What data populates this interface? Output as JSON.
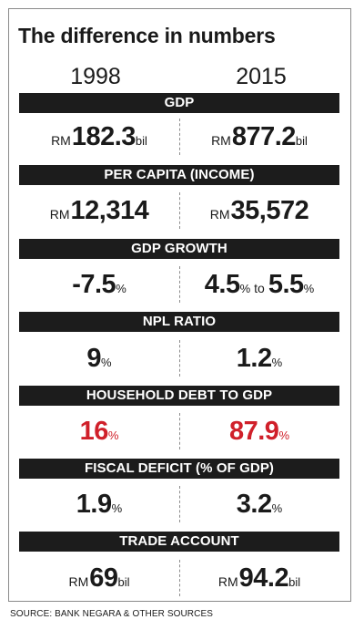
{
  "title": "The difference in numbers",
  "years": {
    "left": "1998",
    "right": "2015"
  },
  "rows": [
    {
      "label": "GDP",
      "left": {
        "prefix": "RM",
        "value": "182.3",
        "suffix": "bil"
      },
      "right": {
        "prefix": "RM",
        "value": "877.2",
        "suffix": "bil"
      }
    },
    {
      "label": "PER CAPITA (INCOME)",
      "left": {
        "prefix": "RM",
        "value": "12,314"
      },
      "right": {
        "prefix": "RM",
        "value": "35,572"
      }
    },
    {
      "label": "GDP GROWTH",
      "left": {
        "value": "-7.5",
        "suffix": "%"
      },
      "right": {
        "value": "4.5",
        "suffix": "%",
        "mid": "to",
        "value2": "5.5",
        "suffix2": "%"
      }
    },
    {
      "label": "NPL RATIO",
      "left": {
        "value": "9",
        "suffix": "%"
      },
      "right": {
        "value": "1.2",
        "suffix": "%"
      }
    },
    {
      "label": "HOUSEHOLD DEBT TO GDP",
      "left": {
        "value": "16",
        "suffix": "%"
      },
      "right": {
        "value": "87.9",
        "suffix": "%"
      }
    },
    {
      "label": "FISCAL DEFICIT (% OF GDP)",
      "left": {
        "value": "1.9",
        "suffix": "%"
      },
      "right": {
        "value": "3.2",
        "suffix": "%"
      }
    },
    {
      "label": "TRADE ACCOUNT",
      "left": {
        "prefix": "RM",
        "value": "69",
        "suffix": "bil"
      },
      "right": {
        "prefix": "RM",
        "value": "94.2",
        "suffix": "bil"
      }
    }
  ],
  "colors": {
    "band": "#1c1c1c",
    "text": "#1a1a1a",
    "highlight": "#d0202a"
  },
  "source": "SOURCE: BANK NEGARA & OTHER SOURCES"
}
